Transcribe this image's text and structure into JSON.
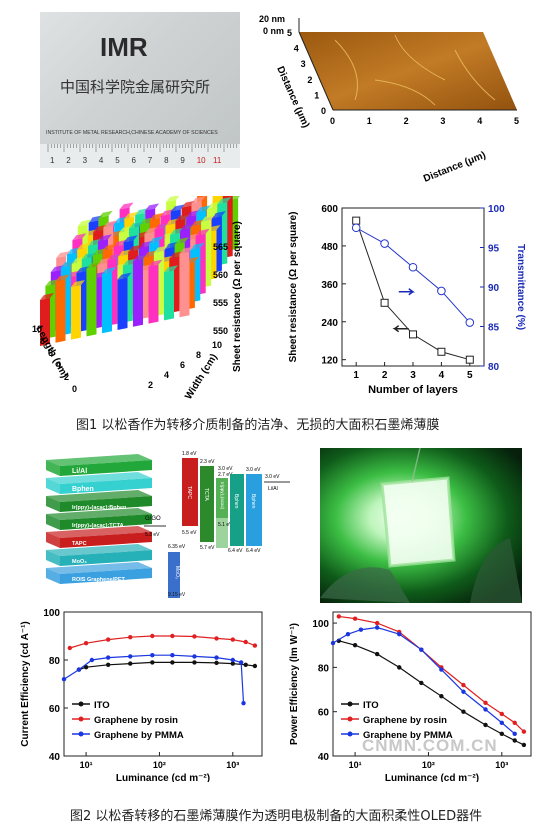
{
  "figure1": {
    "caption": "图1 以松香作为转移介质制备的洁净、无损的大面积石墨烯薄膜",
    "photo": {
      "logo_text": "IMR",
      "chinese_name": "中国科学院金属研究所",
      "english_name": "INSTITUTE OF METAL RESEARCH,CHINESE ACADEMY OF SCIENCES",
      "ruler_numbers": [
        "1",
        "2",
        "3",
        "4",
        "5",
        "6",
        "7",
        "8",
        "9",
        "10",
        "11"
      ]
    },
    "afm": {
      "z_ticks": [
        "20 nm",
        "0 nm"
      ],
      "distance_label": "Distance (μm)",
      "ticks": [
        "0",
        "1",
        "2",
        "3",
        "4",
        "5"
      ]
    },
    "bar3d": {
      "zlabel": "Sheet resistance (Ω per square)",
      "xlabel": "Length (cm)",
      "ylabel": "Width (cm)",
      "z_ticks": [
        "550",
        "555",
        "560",
        "565"
      ],
      "length_ticks": [
        "0",
        "2",
        "4",
        "6",
        "8",
        "10"
      ],
      "width_ticks": [
        "2",
        "4",
        "6",
        "8",
        "10"
      ]
    }
  },
  "figure2": {
    "caption": "图2 以松香转移的石墨烯薄膜作为透明电极制备的大面积柔性OLED器件",
    "stack_layers": [
      "Li/Al",
      "Bphen",
      "Ir(ppy)₂(acac):Bphen",
      "Ir(ppy)₂(acac):TCTA",
      "TAPC",
      "MoO₃",
      "ROIS Graphene/PET"
    ],
    "energy_levels": {
      "labels": [
        "G/GO",
        "MoO₃",
        "TAPC",
        "TCTA",
        "Ir(ppy)₂(acac)",
        "Bphen",
        "Bphen",
        "Li/Al"
      ],
      "values": [
        "5.3 eV",
        "6.35 eV",
        "9.15 eV",
        "1.8 eV",
        "5.5 eV",
        "2.3 eV",
        "5.7 eV",
        "3.0 eV",
        "2.7 eV",
        "5.1 eV",
        "6.4 eV",
        "3.0 eV",
        "6.4 eV",
        "3.0 eV"
      ]
    }
  },
  "chart_data": [
    {
      "type": "line",
      "title": "",
      "xlabel": "Number of layers",
      "ylabel": "Sheet resistance (Ω per square)",
      "y2label": "Transmittance (%)",
      "x": [
        1,
        2,
        3,
        4,
        5
      ],
      "xlim": [
        0.5,
        5.5
      ],
      "ylim": [
        100,
        600
      ],
      "y2lim": [
        80,
        100
      ],
      "y_ticks": [
        120,
        240,
        360,
        480,
        600
      ],
      "y2_ticks": [
        80,
        85,
        90,
        95,
        100
      ],
      "series": [
        {
          "values": [
            560,
            300,
            200,
            145,
            120
          ],
          "axis": "left",
          "color": "#222222",
          "marker": "square"
        },
        {
          "values": [
            97.5,
            95.5,
            92.5,
            89.5,
            85.5
          ],
          "axis": "right",
          "color": "#2233cc",
          "marker": "circle"
        }
      ],
      "grid": false,
      "legend": "none"
    },
    {
      "type": "scatter",
      "xlabel": "Luminance (cd m⁻²)",
      "ylabel": "Current Efficiency (cd A⁻¹)",
      "x_scale": "log",
      "xlim": [
        5,
        2500
      ],
      "ylim": [
        40,
        100
      ],
      "x_ticks": [
        "10¹",
        "10²",
        "10³"
      ],
      "y_ticks": [
        40,
        60,
        80,
        100
      ],
      "legend": "bottom-left",
      "series": [
        {
          "name": "ITO",
          "color": "#111111",
          "x": [
            8,
            10,
            20,
            40,
            80,
            150,
            300,
            600,
            1000,
            1500,
            2000
          ],
          "y": [
            76,
            77,
            78,
            78.5,
            79,
            79,
            79,
            78.8,
            78.5,
            78,
            77.5
          ]
        },
        {
          "name": "Graphene by rosin",
          "color": "#e02020",
          "x": [
            6,
            10,
            20,
            40,
            80,
            150,
            300,
            600,
            1000,
            1500,
            2000
          ],
          "y": [
            85,
            87,
            88.5,
            89.5,
            90,
            90,
            89.8,
            89,
            88.5,
            87.5,
            86
          ]
        },
        {
          "name": "Graphene by PMMA",
          "color": "#1a36e0",
          "x": [
            5,
            8,
            12,
            20,
            40,
            80,
            150,
            300,
            600,
            1000,
            1300,
            1400
          ],
          "y": [
            72,
            76,
            80,
            81,
            81.5,
            82,
            82,
            81.5,
            81,
            80,
            79,
            62
          ]
        }
      ]
    },
    {
      "type": "scatter",
      "xlabel": "Luminance (cd m⁻²)",
      "ylabel": "Power Efficiency (lm W⁻¹)",
      "x_scale": "log",
      "xlim": [
        5,
        2500
      ],
      "ylim": [
        40,
        105
      ],
      "x_ticks": [
        "10¹",
        "10²",
        "10³"
      ],
      "y_ticks": [
        40,
        60,
        80,
        100
      ],
      "legend": "bottom-left",
      "series": [
        {
          "name": "ITO",
          "color": "#111111",
          "x": [
            6,
            10,
            20,
            40,
            80,
            150,
            300,
            600,
            1000,
            1500,
            2000
          ],
          "y": [
            92,
            90,
            86,
            80,
            73,
            67,
            60,
            54,
            50,
            47,
            45
          ]
        },
        {
          "name": "Graphene by rosin",
          "color": "#e02020",
          "x": [
            6,
            10,
            20,
            40,
            80,
            150,
            300,
            600,
            1000,
            1500,
            2000
          ],
          "y": [
            103,
            102,
            100,
            96,
            88,
            80,
            72,
            64,
            59,
            55,
            51
          ]
        },
        {
          "name": "Graphene by PMMA",
          "color": "#1a36e0",
          "x": [
            5,
            8,
            12,
            20,
            40,
            80,
            150,
            300,
            600,
            1000,
            1500
          ],
          "y": [
            91,
            95,
            97,
            98,
            95,
            88,
            79,
            69,
            61,
            55,
            50
          ]
        }
      ]
    }
  ],
  "watermark": "CNMN.COM.CN"
}
